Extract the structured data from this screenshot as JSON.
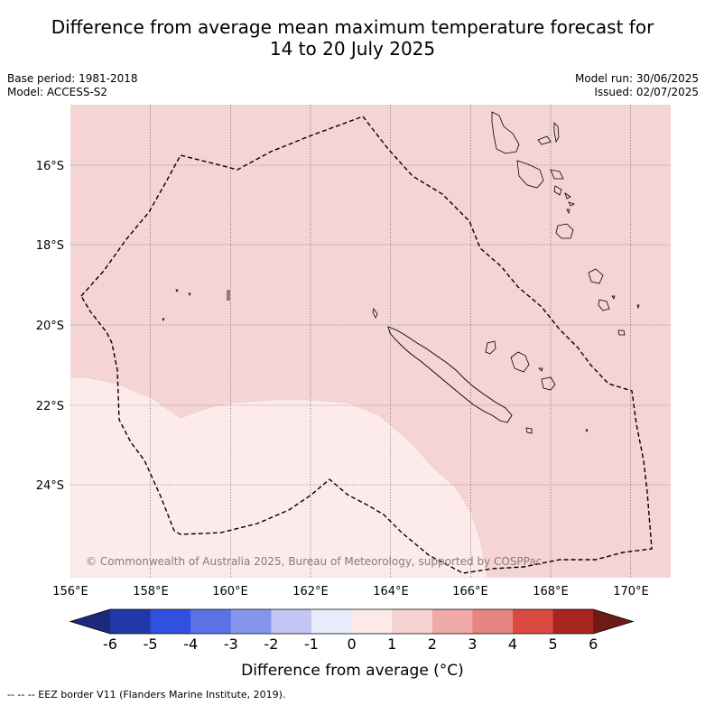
{
  "title_line1": "Difference from average mean maximum temperature forecast for",
  "title_line2": "14 to 20 July 2025",
  "base_period": "Base period: 1981-2018",
  "model": "Model: ACCESS-S2",
  "model_run": "Model run: 30/06/2025",
  "issued": "Issued: 02/07/2025",
  "copyright": "© Commonwealth of Australia 2025, Bureau of Meteorology, supported by COSPPac",
  "footnote": "-- -- -- EEZ border V11 (Flanders Marine Institute, 2019).",
  "colorbar": {
    "title": "Difference from average (°C)",
    "ticks": [
      "-6",
      "-5",
      "-4",
      "-3",
      "-2",
      "-1",
      "0",
      "1",
      "2",
      "3",
      "4",
      "5",
      "6"
    ],
    "colors": [
      "#2139a8",
      "#3050e0",
      "#5a72e6",
      "#8596ea",
      "#c1c6f2",
      "#e8ebf9",
      "#fdeae8",
      "#f5d3d1",
      "#efa9a6",
      "#e6857f",
      "#db4a40",
      "#a8261f"
    ],
    "under_color": "#1b2a7a",
    "over_color": "#6e1b17"
  },
  "map": {
    "lon_range": [
      156,
      171
    ],
    "lat_range": [
      -26.3,
      -14.5
    ],
    "lon_ticks": [
      "156°E",
      "158°E",
      "160°E",
      "162°E",
      "164°E",
      "166°E",
      "168°E",
      "170°E"
    ],
    "lat_ticks": [
      "16°S",
      "18°S",
      "20°S",
      "22°S",
      "24°S"
    ],
    "dominant_category": "1 to 2",
    "southwest_category": "0 to 1",
    "features": [
      "EEZ border (dashed)",
      "New Caledonia coastline",
      "Vanuatu coastline",
      "Loyalty Islands"
    ]
  },
  "colors": {
    "anomaly_1_2": "#f5d5d3",
    "anomaly_0_1": "#fcebea"
  }
}
